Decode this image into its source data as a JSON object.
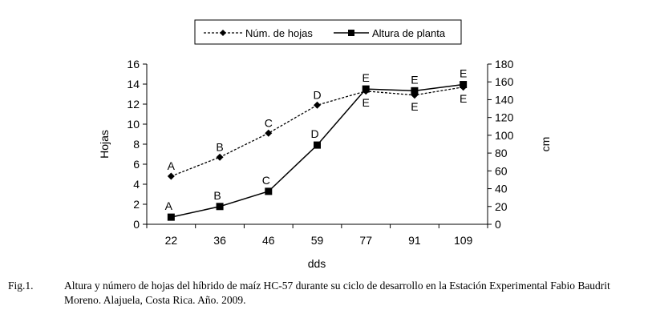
{
  "chart_data": {
    "type": "line",
    "categories": [
      "22",
      "36",
      "46",
      "59",
      "77",
      "91",
      "109"
    ],
    "xlabel": "dds",
    "ylabel": "Hojas",
    "y2label": "cm",
    "ylim": [
      0,
      16
    ],
    "yticks": [
      "0",
      "2",
      "4",
      "6",
      "8",
      "10",
      "12",
      "14",
      "16"
    ],
    "y2lim": [
      0,
      180
    ],
    "y2ticks": [
      "0",
      "20",
      "40",
      "60",
      "80",
      "100",
      "120",
      "140",
      "160",
      "180"
    ],
    "legend_position": "top-center",
    "series": [
      {
        "name": "Núm. de hojas",
        "axis": "left",
        "values": [
          4.8,
          6.7,
          9.1,
          11.9,
          13.3,
          12.9,
          13.7
        ],
        "labels": [
          "A",
          "B",
          "C",
          "D",
          "E",
          "E",
          "E"
        ],
        "style": "dashed",
        "marker": "diamond"
      },
      {
        "name": "Altura de planta",
        "axis": "right",
        "values": [
          8,
          20,
          37,
          89,
          152,
          150,
          157
        ],
        "labels": [
          "A",
          "B",
          "C",
          "D",
          "E",
          "E",
          "E"
        ],
        "style": "solid",
        "marker": "square"
      }
    ]
  },
  "caption": {
    "number": "Fig.1.",
    "text": "Altura y número de hojas del híbrido de maíz HC-57 durante su ciclo de desarrollo en la Estación Experimental Fabio Baudrit Moreno. Alajuela, Costa Rica. Año. 2009."
  }
}
